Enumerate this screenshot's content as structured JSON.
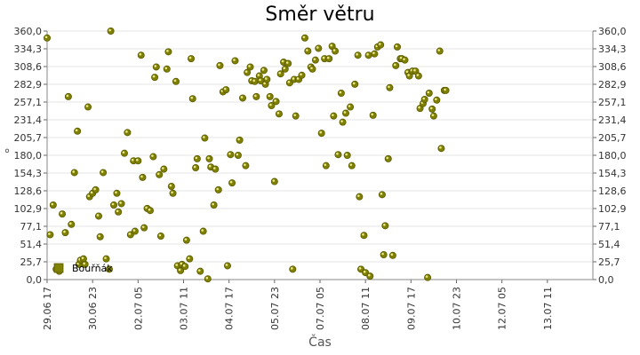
{
  "chart_data": {
    "type": "scatter",
    "title": "Směr větru",
    "xlabel": "Čas",
    "ylabel": "°",
    "ylim": [
      0,
      360
    ],
    "yticks": [
      "0,0",
      "25,7",
      "51,4",
      "77,1",
      "102,9",
      "128,6",
      "154,3",
      "180,0",
      "205,7",
      "231,4",
      "257,1",
      "282,9",
      "308,6",
      "334,3",
      "360,0"
    ],
    "xticks": [
      "29.06 17",
      "30.06 23",
      "02.07 05",
      "03.07 11",
      "04.07 17",
      "05.07 23",
      "07.07 05",
      "08.07 11",
      "09.07 17",
      "10.07 23",
      "12.07 05",
      "13.07 11"
    ],
    "xlim_hours": [
      0,
      360
    ],
    "grid": true,
    "legend_position": "bottom-left",
    "marker_color": "#808000",
    "series": [
      {
        "name": "Bouřňák",
        "points": [
          [
            0,
            350
          ],
          [
            2,
            65
          ],
          [
            4,
            108
          ],
          [
            6,
            15
          ],
          [
            8,
            12
          ],
          [
            10,
            95
          ],
          [
            12,
            68
          ],
          [
            14,
            265
          ],
          [
            16,
            80
          ],
          [
            18,
            155
          ],
          [
            20,
            215
          ],
          [
            21,
            22
          ],
          [
            22,
            28
          ],
          [
            24,
            30
          ],
          [
            25,
            22
          ],
          [
            27,
            250
          ],
          [
            28,
            120
          ],
          [
            30,
            125
          ],
          [
            32,
            130
          ],
          [
            34,
            92
          ],
          [
            35,
            62
          ],
          [
            37,
            155
          ],
          [
            39,
            30
          ],
          [
            41,
            15
          ],
          [
            42,
            360
          ],
          [
            44,
            108
          ],
          [
            46,
            125
          ],
          [
            47,
            98
          ],
          [
            49,
            110
          ],
          [
            51,
            183
          ],
          [
            53,
            213
          ],
          [
            55,
            65
          ],
          [
            57,
            172
          ],
          [
            58,
            70
          ],
          [
            60,
            172
          ],
          [
            62,
            325
          ],
          [
            63,
            148
          ],
          [
            64,
            75
          ],
          [
            66,
            103
          ],
          [
            68,
            100
          ],
          [
            70,
            178
          ],
          [
            71,
            293
          ],
          [
            72,
            308
          ],
          [
            74,
            152
          ],
          [
            75,
            63
          ],
          [
            77,
            160
          ],
          [
            79,
            305
          ],
          [
            80,
            330
          ],
          [
            82,
            135
          ],
          [
            83,
            125
          ],
          [
            85,
            287
          ],
          [
            86,
            20
          ],
          [
            88,
            13
          ],
          [
            89,
            22
          ],
          [
            91,
            19
          ],
          [
            92,
            57
          ],
          [
            94,
            30
          ],
          [
            95,
            320
          ],
          [
            96,
            262
          ],
          [
            98,
            162
          ],
          [
            99,
            175
          ],
          [
            101,
            12
          ],
          [
            103,
            70
          ],
          [
            104,
            205
          ],
          [
            106,
            1
          ],
          [
            107,
            175
          ],
          [
            108,
            163
          ],
          [
            110,
            108
          ],
          [
            111,
            160
          ],
          [
            113,
            130
          ],
          [
            114,
            310
          ],
          [
            116,
            272
          ],
          [
            118,
            275
          ],
          [
            119,
            20
          ],
          [
            121,
            181
          ],
          [
            122,
            140
          ],
          [
            124,
            317
          ],
          [
            126,
            180
          ],
          [
            127,
            202
          ],
          [
            129,
            263
          ],
          [
            131,
            165
          ],
          [
            132,
            300
          ],
          [
            134,
            308
          ],
          [
            135,
            288
          ],
          [
            137,
            287
          ],
          [
            138,
            265
          ],
          [
            140,
            295
          ],
          [
            141,
            288
          ],
          [
            143,
            303
          ],
          [
            144,
            283
          ],
          [
            145,
            290
          ],
          [
            147,
            265
          ],
          [
            148,
            252
          ],
          [
            150,
            142
          ],
          [
            151,
            258
          ],
          [
            153,
            240
          ],
          [
            154,
            298
          ],
          [
            156,
            315
          ],
          [
            157,
            305
          ],
          [
            159,
            313
          ],
          [
            160,
            285
          ],
          [
            162,
            15
          ],
          [
            163,
            290
          ],
          [
            164,
            237
          ],
          [
            166,
            290
          ],
          [
            168,
            296
          ],
          [
            170,
            350
          ],
          [
            172,
            331
          ],
          [
            174,
            308
          ],
          [
            175,
            305
          ],
          [
            177,
            318
          ],
          [
            179,
            335
          ],
          [
            181,
            212
          ],
          [
            183,
            320
          ],
          [
            184,
            165
          ],
          [
            186,
            320
          ],
          [
            188,
            338
          ],
          [
            189,
            237
          ],
          [
            190,
            331
          ],
          [
            192,
            181
          ],
          [
            194,
            270
          ],
          [
            195,
            228
          ],
          [
            197,
            241
          ],
          [
            198,
            180
          ],
          [
            200,
            250
          ],
          [
            201,
            165
          ],
          [
            203,
            283
          ],
          [
            205,
            325
          ],
          [
            206,
            120
          ],
          [
            207,
            15
          ],
          [
            209,
            64
          ],
          [
            210,
            10
          ],
          [
            212,
            325
          ],
          [
            213,
            5
          ],
          [
            215,
            238
          ],
          [
            216,
            327
          ],
          [
            218,
            337
          ],
          [
            220,
            340
          ],
          [
            221,
            123
          ],
          [
            222,
            36
          ],
          [
            223,
            78
          ],
          [
            225,
            175
          ],
          [
            226,
            278
          ],
          [
            228,
            35
          ],
          [
            230,
            310
          ],
          [
            231,
            337
          ],
          [
            233,
            320
          ],
          [
            234,
            320
          ],
          [
            236,
            318
          ],
          [
            238,
            300
          ],
          [
            239,
            295
          ],
          [
            241,
            302
          ],
          [
            243,
            302
          ],
          [
            245,
            295
          ],
          [
            246,
            248
          ],
          [
            248,
            255
          ],
          [
            249,
            261
          ],
          [
            251,
            3
          ],
          [
            252,
            270
          ],
          [
            254,
            247
          ],
          [
            255,
            237
          ],
          [
            257,
            260
          ],
          [
            259,
            331
          ],
          [
            260,
            190
          ],
          [
            262,
            274
          ],
          [
            263,
            274
          ]
        ]
      }
    ]
  }
}
